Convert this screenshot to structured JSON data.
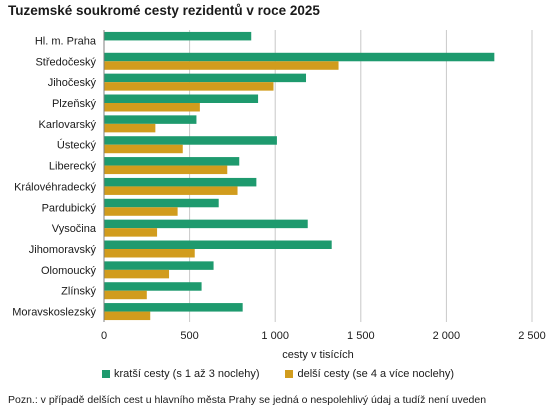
{
  "chart_data": {
    "type": "bar",
    "orientation": "horizontal",
    "title": "Tuzemské soukromé cesty rezidentů v roce 2025",
    "xlabel": "cesty v tisících",
    "ylabel": "",
    "xlim": [
      0,
      2500
    ],
    "x_ticks": [
      "0",
      "500",
      "1 000",
      "1 500",
      "2 000",
      "2 500"
    ],
    "x_tick_values": [
      0,
      500,
      1000,
      1500,
      2000,
      2500
    ],
    "grid": "vertical",
    "legend_position": "bottom",
    "categories": [
      "Hl. m. Praha",
      "Středočeský",
      "Jihočeský",
      "Plzeňský",
      "Karlovarský",
      "Ústecký",
      "Liberecký",
      "Královéhradecký",
      "Pardubický",
      "Vysočina",
      "Jihomoravský",
      "Olomoucký",
      "Zlínský",
      "Moravskoslezský"
    ],
    "series": [
      {
        "name": "kratší cesty (s 1 až 3 noclehy)",
        "color": "#1e9a6e",
        "values": [
          860,
          2280,
          1180,
          900,
          540,
          1010,
          790,
          890,
          670,
          1190,
          1330,
          640,
          570,
          810
        ]
      },
      {
        "name": "delší cesty (se 4 a více noclehy)",
        "color": "#d19c1d",
        "values": [
          null,
          1370,
          990,
          560,
          300,
          460,
          720,
          780,
          430,
          310,
          530,
          380,
          250,
          270
        ]
      }
    ]
  },
  "footnote": "Pozn.: v případě delších cest u hlavního města Prahy se jedná o nespolehlivý údaj a tudíž není uveden"
}
